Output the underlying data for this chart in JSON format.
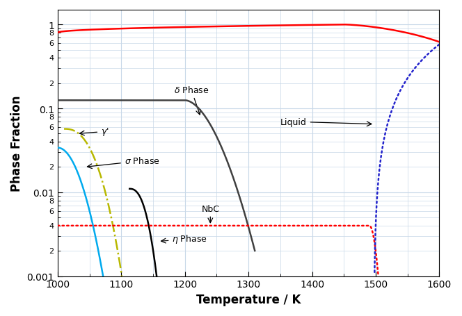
{
  "title": "",
  "xlabel": "Temperature / K",
  "ylabel": "Phase Fraction",
  "xlim": [
    1000,
    1600
  ],
  "ylim_log": [
    0.001,
    1.5
  ],
  "grid_color": "#c8d8e8",
  "background_color": "#ffffff",
  "gamma_matrix_color": "#ff0000",
  "delta_color": "#404040",
  "gamma_prime_color": "#b8b800",
  "sigma_color": "#00aaee",
  "eta_color": "#000000",
  "nbc_color": "#ff0000",
  "liquid_color": "#2222cc"
}
